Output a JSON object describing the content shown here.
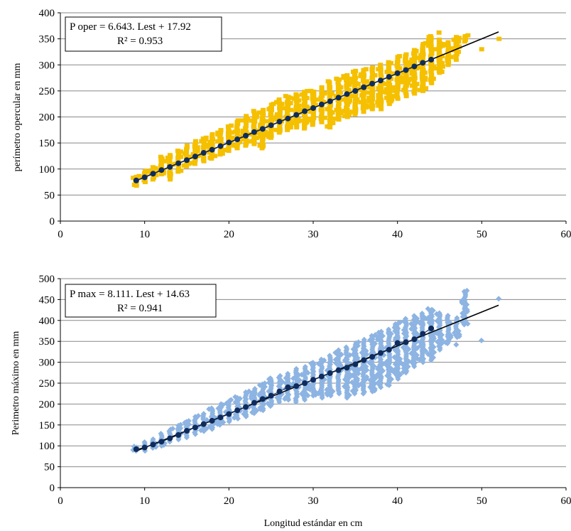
{
  "chart_data": [
    {
      "type": "scatter",
      "ylabel": "perímetro opercular en mm",
      "xlabel": "",
      "xlim": [
        0,
        60
      ],
      "ylim": [
        0,
        400
      ],
      "xticks": [
        "0",
        "10",
        "20",
        "30",
        "40",
        "50",
        "60"
      ],
      "yticks": [
        "0",
        "50",
        "100",
        "150",
        "200",
        "250",
        "300",
        "350",
        "400"
      ],
      "equation": "P oper = 6.643. Lest + 17.92",
      "r2": "R² = 0.953",
      "fit": {
        "slope": 6.643,
        "intercept": 17.92,
        "x_range": [
          9,
          52
        ]
      },
      "grid": "horizontal",
      "marker_color": "#F5C000",
      "means_color": "#0F2C5C",
      "scatter_ranges": [
        [
          9,
          68,
          86
        ],
        [
          10,
          75,
          98
        ],
        [
          11,
          80,
          106
        ],
        [
          12,
          90,
          125
        ],
        [
          13,
          80,
          128
        ],
        [
          14,
          95,
          135
        ],
        [
          15,
          105,
          148
        ],
        [
          16,
          110,
          155
        ],
        [
          17,
          115,
          160
        ],
        [
          18,
          120,
          170
        ],
        [
          19,
          128,
          178
        ],
        [
          20,
          135,
          185
        ],
        [
          21,
          140,
          195
        ],
        [
          22,
          145,
          205
        ],
        [
          23,
          148,
          212
        ],
        [
          24,
          140,
          215
        ],
        [
          25,
          160,
          225
        ],
        [
          26,
          170,
          235
        ],
        [
          27,
          175,
          240
        ],
        [
          28,
          180,
          246
        ],
        [
          29,
          178,
          250
        ],
        [
          30,
          185,
          250
        ],
        [
          31,
          190,
          260
        ],
        [
          32,
          180,
          270
        ],
        [
          33,
          195,
          275
        ],
        [
          34,
          200,
          280
        ],
        [
          35,
          205,
          290
        ],
        [
          36,
          210,
          290
        ],
        [
          37,
          215,
          295
        ],
        [
          38,
          220,
          300
        ],
        [
          39,
          225,
          305
        ],
        [
          40,
          235,
          315
        ],
        [
          41,
          240,
          320
        ],
        [
          42,
          245,
          330
        ],
        [
          43,
          250,
          340
        ],
        [
          44,
          265,
          355
        ],
        [
          45,
          285,
          350
        ],
        [
          46,
          300,
          345
        ],
        [
          47,
          310,
          355
        ],
        [
          48,
          345,
          357
        ]
      ],
      "outliers": [
        [
          50,
          330
        ],
        [
          52,
          350
        ],
        [
          45,
          362
        ],
        [
          38,
          215
        ]
      ],
      "means": [
        [
          9,
          78
        ],
        [
          10,
          84
        ],
        [
          11,
          91
        ],
        [
          12,
          98
        ],
        [
          13,
          104
        ],
        [
          14,
          111
        ],
        [
          15,
          117
        ],
        [
          16,
          124
        ],
        [
          17,
          131
        ],
        [
          18,
          137
        ],
        [
          19,
          144
        ],
        [
          20,
          151
        ],
        [
          21,
          157
        ],
        [
          22,
          164
        ],
        [
          23,
          171
        ],
        [
          24,
          177
        ],
        [
          25,
          184
        ],
        [
          26,
          191
        ],
        [
          27,
          197
        ],
        [
          28,
          204
        ],
        [
          29,
          211
        ],
        [
          30,
          217
        ],
        [
          31,
          224
        ],
        [
          32,
          230
        ],
        [
          33,
          237
        ],
        [
          34,
          244
        ],
        [
          35,
          250
        ],
        [
          36,
          257
        ],
        [
          37,
          264
        ],
        [
          38,
          270
        ],
        [
          39,
          277
        ],
        [
          40,
          284
        ],
        [
          41,
          290
        ],
        [
          42,
          297
        ],
        [
          43,
          304
        ],
        [
          44,
          310
        ]
      ]
    },
    {
      "type": "scatter",
      "ylabel": "Perimetro máximo en mm",
      "xlabel": "Longitud estándar en cm",
      "xlim": [
        0,
        60
      ],
      "ylim": [
        0,
        500
      ],
      "xticks": [
        "0",
        "10",
        "20",
        "30",
        "40",
        "50",
        "60"
      ],
      "yticks": [
        "0",
        "50",
        "100",
        "150",
        "200",
        "250",
        "300",
        "350",
        "400",
        "450",
        "500"
      ],
      "equation": "P max = 8.111. Lest + 14.63",
      "r2": "R² = 0.941",
      "fit": {
        "slope": 8.111,
        "intercept": 14.63,
        "x_range": [
          9,
          52
        ]
      },
      "grid": "horizontal",
      "marker_color": "#8DB4E2",
      "means_color": "#0F2C5C",
      "scatter_ranges": [
        [
          9,
          88,
          98
        ],
        [
          10,
          88,
          112
        ],
        [
          11,
          95,
          120
        ],
        [
          12,
          100,
          130
        ],
        [
          13,
          110,
          142
        ],
        [
          14,
          115,
          150
        ],
        [
          15,
          120,
          160
        ],
        [
          16,
          128,
          172
        ],
        [
          17,
          135,
          180
        ],
        [
          18,
          140,
          190
        ],
        [
          19,
          150,
          200
        ],
        [
          20,
          158,
          210
        ],
        [
          21,
          165,
          218
        ],
        [
          22,
          170,
          230
        ],
        [
          23,
          178,
          240
        ],
        [
          24,
          185,
          250
        ],
        [
          25,
          195,
          262
        ],
        [
          26,
          205,
          270
        ],
        [
          27,
          210,
          275
        ],
        [
          28,
          205,
          285
        ],
        [
          29,
          210,
          290
        ],
        [
          30,
          220,
          300
        ],
        [
          31,
          215,
          310
        ],
        [
          32,
          220,
          320
        ],
        [
          33,
          225,
          330
        ],
        [
          34,
          215,
          340
        ],
        [
          35,
          225,
          350
        ],
        [
          36,
          225,
          355
        ],
        [
          37,
          230,
          365
        ],
        [
          38,
          240,
          375
        ],
        [
          39,
          245,
          380
        ],
        [
          40,
          260,
          395
        ],
        [
          41,
          275,
          405
        ],
        [
          42,
          290,
          415
        ],
        [
          43,
          300,
          420
        ],
        [
          44,
          305,
          430
        ],
        [
          45,
          330,
          420
        ],
        [
          46,
          345,
          415
        ],
        [
          47,
          360,
          410
        ],
        [
          48,
          390,
          470
        ]
      ],
      "outliers": [
        [
          50,
          352
        ],
        [
          52,
          452
        ],
        [
          47,
          342
        ],
        [
          46,
          352
        ]
      ],
      "means": [
        [
          9,
          92
        ],
        [
          10,
          96
        ],
        [
          11,
          103
        ],
        [
          12,
          110
        ],
        [
          13,
          118
        ],
        [
          14,
          126
        ],
        [
          15,
          136
        ],
        [
          16,
          144
        ],
        [
          17,
          152
        ],
        [
          18,
          160
        ],
        [
          19,
          168
        ],
        [
          20,
          176
        ],
        [
          21,
          185
        ],
        [
          22,
          193
        ],
        [
          23,
          203
        ],
        [
          24,
          212
        ],
        [
          25,
          220
        ],
        [
          26,
          230
        ],
        [
          27,
          240
        ],
        [
          28,
          243
        ],
        [
          29,
          250
        ],
        [
          30,
          258
        ],
        [
          31,
          266
        ],
        [
          32,
          274
        ],
        [
          33,
          281
        ],
        [
          34,
          287
        ],
        [
          35,
          295
        ],
        [
          36,
          305
        ],
        [
          37,
          313
        ],
        [
          38,
          322
        ],
        [
          39,
          330
        ],
        [
          40,
          346
        ],
        [
          41,
          348
        ],
        [
          42,
          355
        ],
        [
          43,
          368
        ],
        [
          44,
          381
        ]
      ]
    }
  ]
}
